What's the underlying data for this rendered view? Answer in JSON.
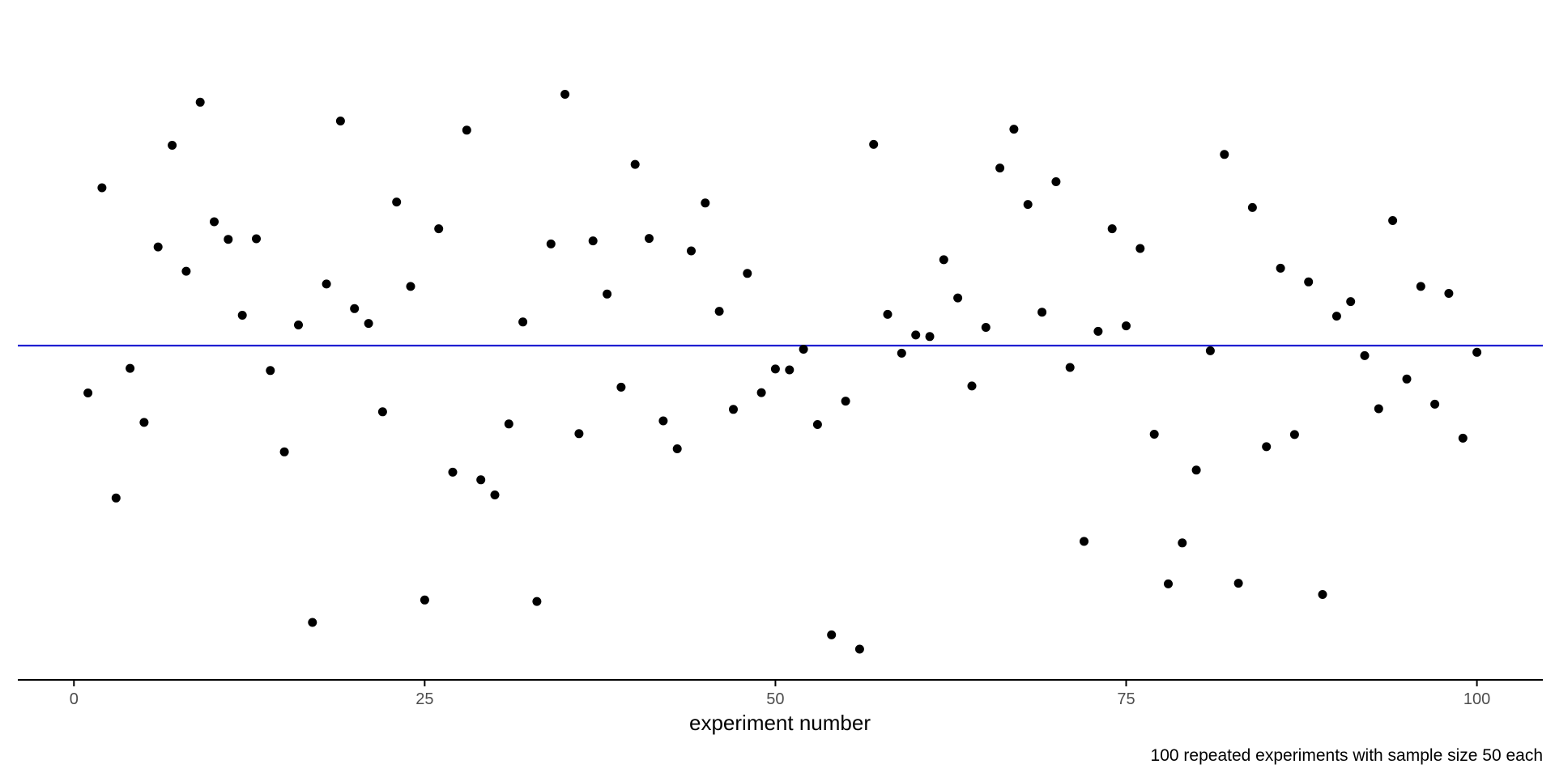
{
  "chart_data": {
    "type": "scatter",
    "xlabel": "experiment number",
    "ylabel": "",
    "caption": "100 repeated experiments with sample size 50 each",
    "xlim": [
      -4,
      104.7
    ],
    "ylim": [
      -1,
      1
    ],
    "x_ticks": [
      0,
      25,
      50,
      75,
      100
    ],
    "reference_line": {
      "y": 0,
      "color": "#1f1fd1"
    },
    "grid": false,
    "point_color": "#000000",
    "points": [
      [
        1,
        -0.156
      ],
      [
        2,
        0.52
      ],
      [
        3,
        -0.502
      ],
      [
        4,
        -0.075
      ],
      [
        5,
        -0.253
      ],
      [
        6,
        0.325
      ],
      [
        7,
        0.66
      ],
      [
        8,
        0.245
      ],
      [
        9,
        0.802
      ],
      [
        10,
        0.408
      ],
      [
        11,
        0.35
      ],
      [
        12,
        0.1
      ],
      [
        13,
        0.352
      ],
      [
        14,
        -0.082
      ],
      [
        15,
        -0.35
      ],
      [
        16,
        0.068
      ],
      [
        17,
        -0.912
      ],
      [
        18,
        0.203
      ],
      [
        19,
        0.74
      ],
      [
        20,
        0.122
      ],
      [
        21,
        0.073
      ],
      [
        22,
        -0.218
      ],
      [
        23,
        0.473
      ],
      [
        24,
        0.195
      ],
      [
        25,
        -0.838
      ],
      [
        26,
        0.385
      ],
      [
        27,
        -0.417
      ],
      [
        28,
        0.71
      ],
      [
        29,
        -0.442
      ],
      [
        30,
        -0.492
      ],
      [
        31,
        -0.258
      ],
      [
        32,
        0.078
      ],
      [
        33,
        -0.843
      ],
      [
        34,
        0.335
      ],
      [
        35,
        0.828
      ],
      [
        36,
        -0.29
      ],
      [
        37,
        0.345
      ],
      [
        38,
        0.17
      ],
      [
        39,
        -0.137
      ],
      [
        40,
        0.597
      ],
      [
        41,
        0.353
      ],
      [
        42,
        -0.248
      ],
      [
        43,
        -0.34
      ],
      [
        44,
        0.312
      ],
      [
        45,
        0.47
      ],
      [
        46,
        0.113
      ],
      [
        47,
        -0.21
      ],
      [
        48,
        0.238
      ],
      [
        49,
        -0.155
      ],
      [
        50,
        -0.077
      ],
      [
        51,
        -0.08
      ],
      [
        52,
        -0.012
      ],
      [
        53,
        -0.26
      ],
      [
        54,
        -0.953
      ],
      [
        55,
        -0.183
      ],
      [
        56,
        -1.0
      ],
      [
        57,
        0.663
      ],
      [
        58,
        0.103
      ],
      [
        59,
        -0.025
      ],
      [
        60,
        0.035
      ],
      [
        61,
        0.03
      ],
      [
        62,
        0.283
      ],
      [
        63,
        0.157
      ],
      [
        64,
        -0.133
      ],
      [
        65,
        0.06
      ],
      [
        66,
        0.585
      ],
      [
        67,
        0.713
      ],
      [
        68,
        0.465
      ],
      [
        69,
        0.11
      ],
      [
        70,
        0.54
      ],
      [
        71,
        -0.072
      ],
      [
        72,
        -0.645
      ],
      [
        73,
        0.047
      ],
      [
        74,
        0.385
      ],
      [
        75,
        0.065
      ],
      [
        76,
        0.32
      ],
      [
        77,
        -0.292
      ],
      [
        78,
        -0.785
      ],
      [
        79,
        -0.65
      ],
      [
        80,
        -0.41
      ],
      [
        81,
        -0.017
      ],
      [
        82,
        0.63
      ],
      [
        83,
        -0.783
      ],
      [
        84,
        0.455
      ],
      [
        85,
        -0.333
      ],
      [
        86,
        0.255
      ],
      [
        87,
        -0.293
      ],
      [
        88,
        0.21
      ],
      [
        89,
        -0.82
      ],
      [
        90,
        0.097
      ],
      [
        91,
        0.145
      ],
      [
        92,
        -0.033
      ],
      [
        93,
        -0.208
      ],
      [
        94,
        0.412
      ],
      [
        95,
        -0.11
      ],
      [
        96,
        0.195
      ],
      [
        97,
        -0.193
      ],
      [
        98,
        0.172
      ],
      [
        99,
        -0.305
      ],
      [
        100,
        -0.022
      ]
    ]
  }
}
